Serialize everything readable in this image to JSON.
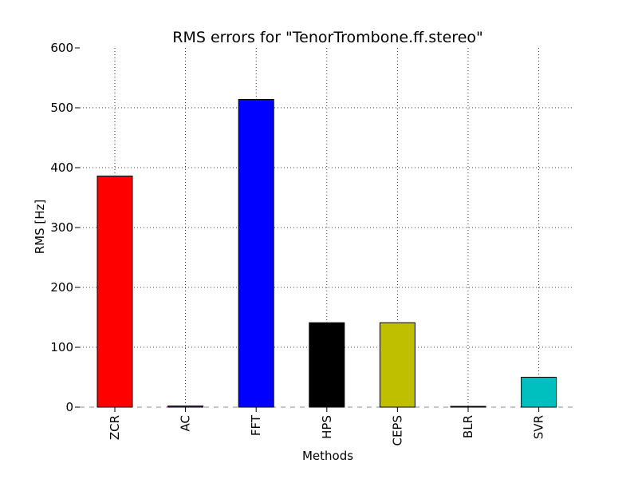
{
  "chart_data": {
    "type": "bar",
    "title": "RMS errors for \"TenorTrombone.ff.stereo\"",
    "xlabel": "Methods",
    "ylabel": "RMS [Hz]",
    "categories": [
      "ZCR",
      "AC",
      "FFT",
      "HPS",
      "CEPS",
      "BLR",
      "SVR"
    ],
    "values": [
      386,
      2,
      514,
      141,
      141,
      1,
      50
    ],
    "colors": [
      "#ff0000",
      "#008000",
      "#0000ff",
      "#000000",
      "#bfbf00",
      "#000000",
      "#00bfbf"
    ],
    "ylim": [
      0,
      600
    ],
    "yticks": [
      "0",
      "100",
      "200",
      "300",
      "400",
      "500",
      "600"
    ],
    "grid": true,
    "legend": "none"
  }
}
